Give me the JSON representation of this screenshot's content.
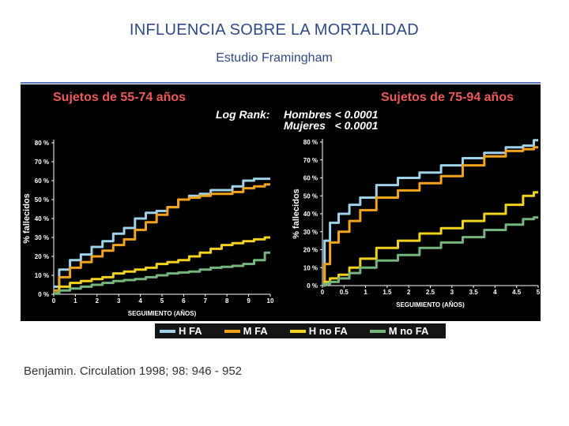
{
  "title": "INFLUENCIA SOBRE LA MORTALIDAD",
  "subtitle": "Estudio Framingham",
  "citation": "Benjamin. Circulation 1998; 98: 946 - 952",
  "logrank": {
    "label": "Log Rank:",
    "line1": "Hombres < 0.0001",
    "line2": "Mujeres   < 0.0001"
  },
  "colors": {
    "H FA": "#9dd2ea",
    "M FA": "#f3a21c",
    "H no FA": "#f2d21c",
    "M no FA": "#74b57c",
    "header_text": "#ee5a5a"
  },
  "legend": [
    {
      "label": "H FA",
      "color": "#9dd2ea"
    },
    {
      "label": "M FA",
      "color": "#f3a21c"
    },
    {
      "label": "H no FA",
      "color": "#f2d21c"
    },
    {
      "label": "M no FA",
      "color": "#74b57c"
    }
  ],
  "chart_data": [
    {
      "type": "line",
      "title": "Sujetos de 55-74 años",
      "xlabel": "SEGUIMIENTO (AÑOS)",
      "ylabel": "% fallecidos",
      "xlim": [
        0,
        10
      ],
      "ylim": [
        0,
        80
      ],
      "xticks": [
        0,
        1,
        2,
        3,
        4,
        5,
        6,
        7,
        8,
        9,
        10
      ],
      "xticklabels": [
        "0",
        "1",
        "2",
        "3",
        "4",
        "5",
        "6",
        "7",
        "8",
        "9",
        "10"
      ],
      "yticks": [
        0,
        10,
        20,
        30,
        40,
        50,
        60,
        70,
        80
      ],
      "yticklabels": [
        "0 %",
        "10 %",
        "20 %",
        "30 %",
        "40 %",
        "50 %",
        "60 %",
        "70 %",
        "80 %"
      ],
      "x": [
        0,
        0.5,
        1,
        1.5,
        2,
        2.5,
        3,
        3.5,
        4,
        4.5,
        5,
        5.5,
        6,
        6.5,
        7,
        7.5,
        8,
        8.5,
        9,
        9.5,
        10
      ],
      "series": [
        {
          "name": "H FA",
          "values": [
            4,
            13,
            18,
            21,
            25,
            28,
            32,
            35,
            40,
            43,
            44,
            46,
            50,
            52,
            53,
            55,
            55,
            57,
            60,
            61,
            61
          ]
        },
        {
          "name": "M FA",
          "values": [
            2,
            9,
            14,
            17,
            20,
            23,
            26,
            29,
            34,
            38,
            42,
            46,
            50,
            51,
            52,
            53,
            53,
            54,
            56,
            57,
            58
          ]
        },
        {
          "name": "H no FA",
          "values": [
            0.5,
            4,
            6,
            7,
            8,
            9,
            11,
            12,
            13,
            14,
            16,
            17,
            18,
            20,
            22,
            24,
            26,
            27,
            28,
            29,
            30
          ]
        },
        {
          "name": "M no FA",
          "values": [
            0.3,
            2,
            3,
            4,
            5,
            6,
            7,
            7.5,
            8,
            9,
            10,
            11,
            11.5,
            12,
            13,
            14,
            14.5,
            15,
            16,
            18,
            22
          ]
        }
      ]
    },
    {
      "type": "line",
      "title": "Sujetos de 75-94 años",
      "xlabel": "SEGUIMIENTO (AÑOS)",
      "ylabel": "% fallecidos",
      "xlim": [
        0,
        5
      ],
      "ylim": [
        0,
        80
      ],
      "xticks": [
        0,
        0.5,
        1,
        1.5,
        2,
        2.5,
        3,
        3.5,
        4,
        4.5,
        5
      ],
      "xticklabels": [
        "0",
        "0.5",
        "1",
        "1.5",
        "2",
        "2.5",
        "3",
        "3.5",
        "4",
        "4.5",
        "5"
      ],
      "yticks": [
        0,
        10,
        20,
        30,
        40,
        50,
        60,
        70,
        80
      ],
      "yticklabels": [
        "0 %",
        "10 %",
        "20 %",
        "30 %",
        "40 %",
        "50 %",
        "60 %",
        "70 %",
        "80 %"
      ],
      "x": [
        0,
        0.1,
        0.25,
        0.5,
        0.75,
        1,
        1.5,
        2,
        2.5,
        3,
        3.5,
        4,
        4.5,
        4.8,
        5
      ],
      "series": [
        {
          "name": "H FA",
          "values": [
            0,
            25,
            35,
            40,
            45,
            49,
            56,
            60,
            63,
            67,
            71,
            74,
            77,
            78,
            81
          ]
        },
        {
          "name": "M FA",
          "values": [
            0,
            12,
            24,
            30,
            36,
            42,
            49,
            53,
            57,
            61,
            67,
            72,
            75,
            76,
            77
          ]
        },
        {
          "name": "H no FA",
          "values": [
            0,
            2,
            4,
            6,
            10,
            15,
            21,
            25,
            29,
            32,
            36,
            40,
            45,
            50,
            52
          ]
        },
        {
          "name": "M no FA",
          "values": [
            0,
            1,
            2,
            4,
            7,
            10,
            14,
            17,
            21,
            24,
            27,
            31,
            34,
            37,
            38
          ]
        }
      ]
    }
  ]
}
